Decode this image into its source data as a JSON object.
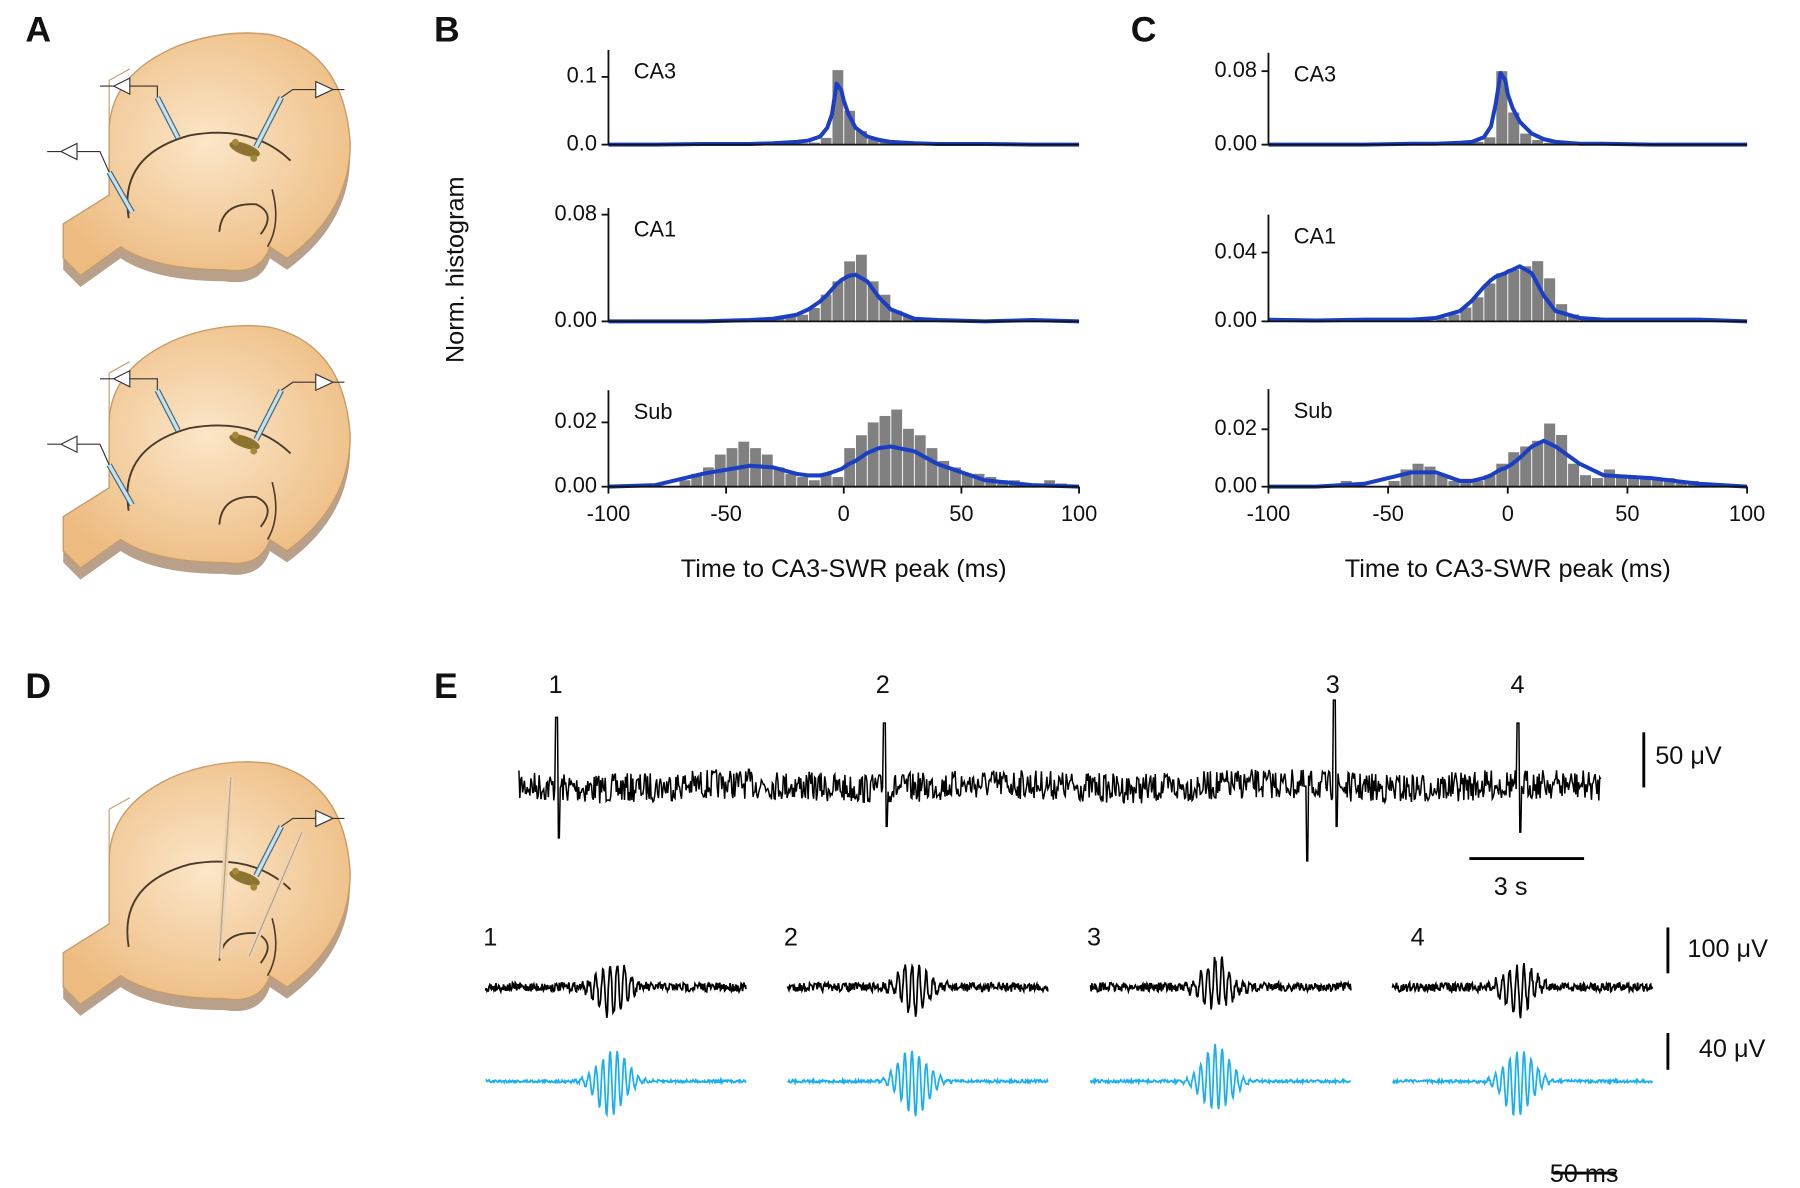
{
  "figure": {
    "panel_labels": [
      "A",
      "B",
      "C",
      "D",
      "E"
    ],
    "overview_events": [
      "1",
      "2",
      "3",
      "4"
    ],
    "sweep_events": [
      "1",
      "2",
      "3",
      "4"
    ],
    "scale_bars": {
      "overview_amplitude": "50 μV",
      "overview_time": "3 s",
      "raw_amplitude": "100 μV",
      "filtered_amplitude": "40 μV",
      "sweep_time": "50 ms"
    }
  },
  "chart_data": [
    {
      "type": "histogram",
      "panel": "B",
      "title": "CA3",
      "bar_color": "#808080",
      "line_color": "#1a3fc4",
      "bins": [
        -100,
        -95,
        -90,
        -85,
        -80,
        -75,
        -70,
        -65,
        -60,
        -55,
        -50,
        -45,
        -40,
        -35,
        -30,
        -25,
        -20,
        -15,
        -10,
        -5,
        0,
        5,
        10,
        15,
        20,
        25,
        30,
        35,
        40,
        45,
        50,
        55,
        60,
        65,
        70,
        75,
        80,
        85,
        90,
        95,
        100
      ],
      "counts": [
        0,
        0,
        0,
        0,
        0,
        0,
        0,
        0,
        0,
        0,
        0,
        0,
        0,
        0,
        0,
        0,
        0.002,
        0.003,
        0.01,
        0.11,
        0.05,
        0.02,
        0.008,
        0.004,
        0.002,
        0,
        0,
        0,
        0,
        0,
        0,
        0,
        0,
        0,
        0,
        0,
        0,
        0,
        0,
        0
      ],
      "fit": {
        "x": [
          -100,
          -80,
          -60,
          -40,
          -30,
          -20,
          -15,
          -10,
          -7,
          -5,
          -3,
          -1,
          0,
          2,
          5,
          10,
          15,
          20,
          30,
          40,
          60,
          80,
          100
        ],
        "values": [
          0,
          0,
          0.001,
          0.001,
          0.002,
          0.004,
          0.006,
          0.012,
          0.025,
          0.045,
          0.09,
          0.08,
          0.065,
          0.045,
          0.025,
          0.012,
          0.007,
          0.004,
          0.002,
          0.001,
          0.001,
          0,
          0
        ]
      },
      "xlim": [
        -100,
        100
      ],
      "ylim": [
        0,
        0.14
      ],
      "yticks": [
        {
          "value": 0,
          "label": "0.0"
        },
        0.1
      ]
    },
    {
      "type": "histogram",
      "panel": "B",
      "title": "CA1",
      "bar_color": "#808080",
      "line_color": "#1a3fc4",
      "ylabel": "Norm. histogram",
      "bins": [
        -100,
        -95,
        -90,
        -85,
        -80,
        -75,
        -70,
        -65,
        -60,
        -55,
        -50,
        -45,
        -40,
        -35,
        -30,
        -25,
        -20,
        -15,
        -10,
        -5,
        0,
        5,
        10,
        15,
        20,
        25,
        30,
        35,
        40,
        45,
        50,
        55,
        60,
        65,
        70,
        75,
        80,
        85,
        90,
        95,
        100
      ],
      "counts": [
        0,
        0,
        0,
        0,
        0,
        0,
        0,
        0,
        0,
        0,
        0,
        0,
        0,
        0,
        0.003,
        0.004,
        0.005,
        0.01,
        0.02,
        0.03,
        0.045,
        0.05,
        0.03,
        0.02,
        0.008,
        0.004,
        0.002,
        0,
        0,
        0,
        0,
        0,
        0,
        0,
        0,
        0,
        0,
        0,
        0,
        0
      ],
      "fit": {
        "x": [
          -100,
          -80,
          -60,
          -40,
          -30,
          -20,
          -15,
          -10,
          -7,
          -5,
          -3,
          -1,
          0,
          2,
          5,
          10,
          15,
          20,
          30,
          40,
          60,
          80,
          100
        ],
        "values": [
          0,
          0,
          0,
          0.001,
          0.002,
          0.005,
          0.009,
          0.015,
          0.02,
          0.024,
          0.028,
          0.031,
          0.032,
          0.034,
          0.035,
          0.03,
          0.018,
          0.009,
          0.002,
          0.001,
          0,
          0.001,
          0
        ]
      },
      "xlim": [
        -100,
        100
      ],
      "ylim": [
        0,
        0.085
      ],
      "yticks": [
        {
          "value": 0,
          "label": "0.00"
        },
        0.08
      ]
    },
    {
      "type": "histogram",
      "panel": "B",
      "title": "Sub",
      "bar_color": "#808080",
      "line_color": "#1a3fc4",
      "xlabel": "Time to CA3-SWR peak (ms)",
      "bins": [
        -100,
        -95,
        -90,
        -85,
        -80,
        -75,
        -70,
        -65,
        -60,
        -55,
        -50,
        -45,
        -40,
        -35,
        -30,
        -25,
        -20,
        -15,
        -10,
        -5,
        0,
        5,
        10,
        15,
        20,
        25,
        30,
        35,
        40,
        45,
        50,
        55,
        60,
        65,
        70,
        75,
        80,
        85,
        90,
        95,
        100
      ],
      "counts": [
        0,
        0,
        0,
        0,
        0,
        0,
        0.002,
        0.004,
        0.006,
        0.01,
        0.012,
        0.014,
        0.012,
        0.01,
        0.006,
        0.004,
        0.003,
        0.002,
        0.004,
        0.003,
        0.012,
        0.016,
        0.02,
        0.022,
        0.024,
        0.018,
        0.016,
        0.012,
        0.008,
        0.006,
        0.004,
        0.004,
        0.003,
        0.002,
        0.002,
        0.001,
        0.001,
        0.002,
        0.001,
        0
      ],
      "fit": {
        "x": [
          -100,
          -80,
          -60,
          -40,
          -30,
          -20,
          -15,
          -10,
          -7,
          -5,
          -3,
          -1,
          0,
          2,
          5,
          10,
          15,
          20,
          30,
          40,
          60,
          80,
          100
        ],
        "values": [
          0,
          0.0005,
          0.004,
          0.0065,
          0.006,
          0.004,
          0.0035,
          0.0035,
          0.004,
          0.0045,
          0.005,
          0.0055,
          0.006,
          0.007,
          0.008,
          0.0105,
          0.012,
          0.0125,
          0.011,
          0.007,
          0.002,
          0.0005,
          0
        ]
      },
      "xlim": [
        -100,
        100
      ],
      "xticks": [
        -100,
        -50,
        0,
        50,
        100
      ],
      "ylim": [
        0,
        0.03
      ],
      "yticks": [
        {
          "value": 0,
          "label": "0.00"
        },
        0.02
      ]
    },
    {
      "type": "histogram",
      "panel": "C",
      "title": "CA3",
      "bar_color": "#808080",
      "line_color": "#1a3fc4",
      "bins": [
        -100,
        -95,
        -90,
        -85,
        -80,
        -75,
        -70,
        -65,
        -60,
        -55,
        -50,
        -45,
        -40,
        -35,
        -30,
        -25,
        -20,
        -15,
        -10,
        -5,
        0,
        5,
        10,
        15,
        20,
        25,
        30,
        35,
        40,
        45,
        50,
        55,
        60,
        65,
        70,
        75,
        80,
        85,
        90,
        95,
        100
      ],
      "counts": [
        0,
        0,
        0,
        0,
        0,
        0,
        0,
        0,
        0,
        0,
        0,
        0,
        0,
        0,
        0,
        0,
        0,
        0.003,
        0.008,
        0.08,
        0.035,
        0.012,
        0.005,
        0.002,
        0,
        0,
        0,
        0,
        0,
        0,
        0,
        0,
        0,
        0,
        0,
        0,
        0,
        0,
        0,
        0
      ],
      "fit": {
        "x": [
          -100,
          -80,
          -60,
          -40,
          -30,
          -20,
          -15,
          -10,
          -7,
          -5,
          -3,
          -1,
          0,
          2,
          5,
          10,
          15,
          20,
          30,
          40,
          60,
          80,
          100
        ],
        "values": [
          0,
          0,
          0,
          0.001,
          0.001,
          0.002,
          0.003,
          0.008,
          0.02,
          0.045,
          0.078,
          0.07,
          0.055,
          0.04,
          0.025,
          0.012,
          0.006,
          0.003,
          0.001,
          0.001,
          0,
          0,
          0
        ]
      },
      "xlim": [
        -100,
        100
      ],
      "ylim": [
        0,
        0.1
      ],
      "yticks": [
        {
          "value": 0,
          "label": "0.00"
        },
        0.08
      ]
    },
    {
      "type": "histogram",
      "panel": "C",
      "title": "CA1",
      "bar_color": "#808080",
      "line_color": "#1a3fc4",
      "bins": [
        -100,
        -95,
        -90,
        -85,
        -80,
        -75,
        -70,
        -65,
        -60,
        -55,
        -50,
        -45,
        -40,
        -35,
        -30,
        -25,
        -20,
        -15,
        -10,
        -5,
        0,
        5,
        10,
        15,
        20,
        25,
        30,
        35,
        40,
        45,
        50,
        55,
        60,
        65,
        70,
        75,
        80,
        85,
        90,
        95,
        100
      ],
      "counts": [
        0,
        0,
        0,
        0,
        0,
        0,
        0.002,
        0,
        0,
        0,
        0,
        0,
        0,
        0,
        0.002,
        0.004,
        0.008,
        0.014,
        0.022,
        0.028,
        0.03,
        0.032,
        0.035,
        0.025,
        0.01,
        0.004,
        0.002,
        0,
        0,
        0,
        0,
        0,
        0,
        0,
        0,
        0,
        0.001,
        0,
        0,
        0
      ],
      "fit": {
        "x": [
          -100,
          -80,
          -60,
          -40,
          -30,
          -20,
          -15,
          -10,
          -7,
          -5,
          -3,
          -1,
          0,
          2,
          5,
          10,
          15,
          20,
          30,
          40,
          60,
          80,
          100
        ],
        "values": [
          0.001,
          0.0005,
          0.001,
          0.001,
          0.002,
          0.006,
          0.012,
          0.02,
          0.024,
          0.026,
          0.027,
          0.028,
          0.029,
          0.03,
          0.032,
          0.028,
          0.015,
          0.006,
          0.002,
          0.001,
          0.001,
          0.001,
          0
        ]
      },
      "xlim": [
        -100,
        100
      ],
      "ylim": [
        0,
        0.062
      ],
      "yticks": [
        {
          "value": 0,
          "label": "0.00"
        },
        0.04
      ]
    },
    {
      "type": "histogram",
      "panel": "C",
      "title": "Sub",
      "bar_color": "#808080",
      "line_color": "#1a3fc4",
      "xlabel": "Time to CA3-SWR peak (ms)",
      "bins": [
        -100,
        -95,
        -90,
        -85,
        -80,
        -75,
        -70,
        -65,
        -60,
        -55,
        -50,
        -45,
        -40,
        -35,
        -30,
        -25,
        -20,
        -15,
        -10,
        -5,
        0,
        5,
        10,
        15,
        20,
        25,
        30,
        35,
        40,
        45,
        50,
        55,
        60,
        65,
        70,
        75,
        80,
        85,
        90,
        95,
        100
      ],
      "counts": [
        0,
        0,
        0,
        0,
        0,
        0,
        0.002,
        0,
        0,
        0,
        0.002,
        0.006,
        0.008,
        0.007,
        0.004,
        0.002,
        0.002,
        0.002,
        0.004,
        0.008,
        0.012,
        0.014,
        0.016,
        0.022,
        0.018,
        0.008,
        0.004,
        0.003,
        0.006,
        0.004,
        0.003,
        0.003,
        0.003,
        0.003,
        0.002,
        0.002,
        0.001,
        0.001,
        0,
        0
      ],
      "fit": {
        "x": [
          -100,
          -80,
          -60,
          -40,
          -30,
          -20,
          -15,
          -10,
          -7,
          -5,
          -3,
          -1,
          0,
          2,
          5,
          10,
          15,
          20,
          30,
          40,
          60,
          80,
          100
        ],
        "values": [
          0,
          0,
          0.001,
          0.005,
          0.005,
          0.002,
          0.002,
          0.003,
          0.004,
          0.005,
          0.006,
          0.0065,
          0.007,
          0.008,
          0.01,
          0.014,
          0.016,
          0.014,
          0.008,
          0.004,
          0.003,
          0.001,
          0
        ]
      },
      "xlim": [
        -100,
        100
      ],
      "xticks": [
        -100,
        -50,
        0,
        50,
        100
      ],
      "ylim": [
        0,
        0.034
      ],
      "yticks": [
        {
          "value": 0,
          "label": "0.00"
        },
        0.02
      ]
    }
  ]
}
